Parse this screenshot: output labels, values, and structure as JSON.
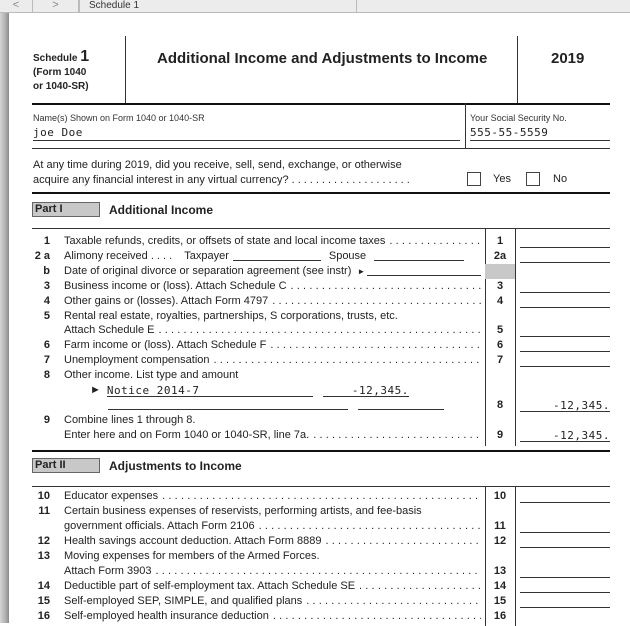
{
  "topbar": {
    "back_icon": "chevron-left-icon",
    "forward_icon": "chevron-right-icon",
    "tab_title": "Schedule 1"
  },
  "header": {
    "schedule_word": "Schedule",
    "schedule_num": "1",
    "form_line1": "(Form 1040",
    "form_line2": "or 1040-SR)",
    "title": "Additional Income and Adjustments to Income",
    "year": "2019"
  },
  "name": {
    "label": "Name(s) Shown on Form 1040 or 1040-SR",
    "value": "joe Doe"
  },
  "ssn": {
    "label": "Your Social Security No.",
    "value": "555-55-5559"
  },
  "virtual_currency": {
    "line1": "At any time during 2019, did you receive, sell, send, exchange, or otherwise",
    "line2": "acquire any financial interest in any virtual currency?",
    "yes": "Yes",
    "no": "No",
    "yes_checked": false,
    "no_checked": false
  },
  "part1": {
    "label": "Part I",
    "title": "Additional Income",
    "rows": [
      {
        "num": "1",
        "text": "Taxable refunds, credits, or offsets of state and local income taxes",
        "box": "1",
        "amount": ""
      },
      {
        "num": "2 a",
        "text": "Alimony received . . . .",
        "taxpayer": "Taxpayer",
        "spouse": "Spouse",
        "box": "2a",
        "amount": ""
      },
      {
        "num": "b",
        "text": "Date of original divorce or separation agreement (see instr)",
        "arrow": "►",
        "shaded": true
      },
      {
        "num": "3",
        "text": "Business income or (loss). Attach Schedule C",
        "box": "3",
        "amount": ""
      },
      {
        "num": "4",
        "text": "Other gains or (losses). Attach Form 4797",
        "box": "4",
        "amount": ""
      },
      {
        "num": "5",
        "text": "Rental real estate, royalties, partnerships, S corporations, trusts, etc.",
        "nodots": true
      },
      {
        "num": "",
        "text": "Attach Schedule E",
        "box": "5",
        "amount": ""
      },
      {
        "num": "6",
        "text": "Farm income or (loss). Attach Schedule F",
        "box": "6",
        "amount": ""
      },
      {
        "num": "7",
        "text": "Unemployment compensation",
        "box": "7",
        "amount": ""
      },
      {
        "num": "8",
        "text": "Other income. List type and amount",
        "nodots": true
      },
      {
        "num": "",
        "other": true,
        "arrow": "►",
        "type": "Notice 2014-7",
        "value": "-12,345."
      },
      {
        "num": "",
        "other_blank": true,
        "box": "8",
        "amount": "-12,345."
      },
      {
        "num": "9",
        "text": "Combine lines 1 through 8.",
        "nodots": true
      },
      {
        "num": "",
        "text": "Enter here and on Form 1040 or 1040-SR, line 7a.",
        "box": "9",
        "amount": "-12,345."
      }
    ]
  },
  "part2": {
    "label": "Part II",
    "title": "Adjustments to Income",
    "rows": [
      {
        "num": "10",
        "text": "Educator expenses",
        "box": "10",
        "amount": ""
      },
      {
        "num": "11",
        "text": "Certain business expenses of reservists, performing artists, and fee-basis",
        "nodots": true
      },
      {
        "num": "",
        "text": "government officials. Attach Form 2106",
        "box": "11",
        "amount": ""
      },
      {
        "num": "12",
        "text": "Health savings account deduction. Attach Form 8889",
        "box": "12",
        "amount": ""
      },
      {
        "num": "13",
        "text": "Moving expenses for members of the Armed Forces.",
        "nodots": true
      },
      {
        "num": "",
        "text": "Attach Form 3903",
        "box": "13",
        "amount": ""
      },
      {
        "num": "14",
        "text": "Deductible part of self-employment tax.  Attach Schedule SE",
        "box": "14",
        "amount": ""
      },
      {
        "num": "15",
        "text": "Self-employed SEP, SIMPLE, and qualified plans",
        "box": "15",
        "amount": ""
      },
      {
        "num": "16",
        "text": "Self-employed health insurance deduction",
        "box": "16",
        "amount": "",
        "noline": true
      }
    ]
  }
}
